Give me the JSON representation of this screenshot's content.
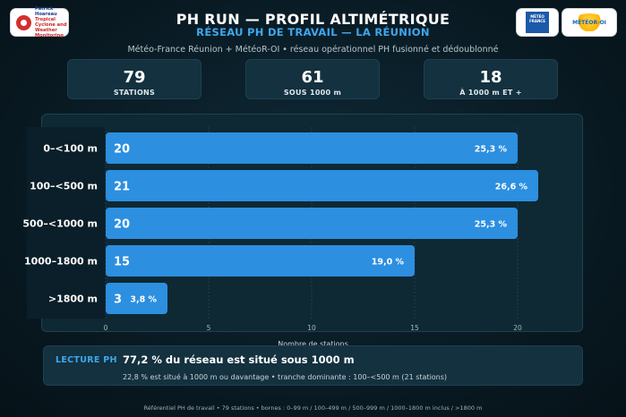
{
  "header": {
    "title": "PH RUN — PROFIL ALTIMÉTRIQUE",
    "subtitle": "RÉSEAU PH DE TRAVAIL — LA RÉUNION",
    "source": "Météo-France Réunion + MétéoR-OI • réseau opérationnel PH fusionné et dédoublonné"
  },
  "logos": {
    "left_line1": "Patrick Hoareau",
    "left_line2": "Tropical Cyclone and",
    "left_line3": "Weather Monitoring",
    "mf_line1": "MÉTÉO",
    "mf_line2": "FRANCE",
    "oi_text": "MÉTÉOR-OI"
  },
  "kpis": [
    {
      "value": "79",
      "label": "STATIONS"
    },
    {
      "value": "61",
      "label": "SOUS 1000 m"
    },
    {
      "value": "18",
      "label": "À 1000 m ET +"
    }
  ],
  "chart_data": {
    "type": "bar",
    "orientation": "horizontal",
    "categories": [
      "0–<100 m",
      "100–<500 m",
      "500–<1000 m",
      "1000–1800 m",
      ">1800 m"
    ],
    "values": [
      20,
      21,
      20,
      15,
      3
    ],
    "value_labels": [
      "20",
      "21",
      "20",
      "15",
      "3"
    ],
    "pct_labels": [
      "25,3 %",
      "26,6 %",
      "25,3 %",
      "19,0 %",
      "3,8 %"
    ],
    "xlabel": "Nombre de stations",
    "xlim": [
      0,
      21
    ],
    "xticks": [
      0,
      5,
      10,
      15,
      20
    ],
    "grid": true,
    "bar_color": "#2c8fe0"
  },
  "reading": {
    "tag": "LECTURE PH",
    "headline": "77,2 % du réseau est situé sous 1000 m",
    "detail": "22,8 % est situé à 1000 m ou davantage • tranche dominante : 100–<500 m (21 stations)"
  },
  "footer": "Référentiel PH de travail • 79 stations • bornes : 0–99 m / 100–499 m / 500–999 m / 1000–1800 m inclus / >1800 m"
}
